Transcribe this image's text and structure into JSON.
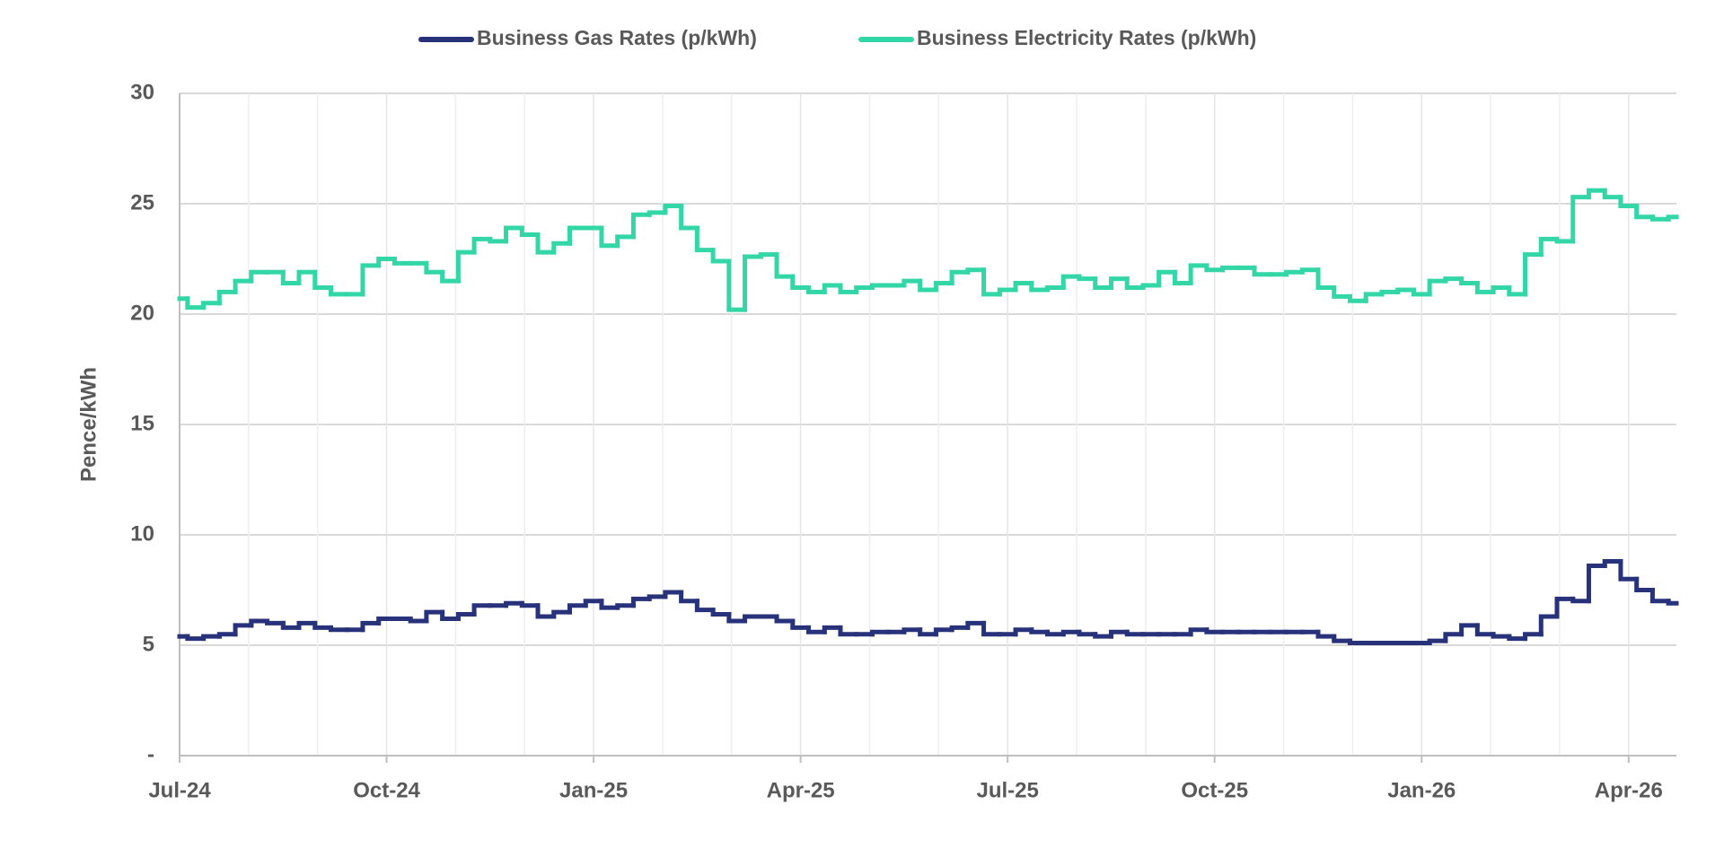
{
  "chart_data": {
    "type": "line",
    "step": true,
    "y_label": "Pence/kWh",
    "grid": true,
    "legend": "top",
    "categories": [
      "Jul-24",
      null,
      null,
      null,
      null,
      null,
      null,
      null,
      null,
      null,
      null,
      null,
      null,
      "Oct-24",
      null,
      null,
      null,
      null,
      null,
      null,
      null,
      null,
      null,
      null,
      null,
      null,
      "Jan-25",
      null,
      null,
      null,
      null,
      null,
      null,
      null,
      null,
      null,
      null,
      null,
      null,
      "Apr-25",
      null,
      null,
      null,
      null,
      null,
      null,
      null,
      null,
      null,
      null,
      null,
      null,
      "Jul-25",
      null,
      null,
      null,
      null,
      null,
      null,
      null,
      null,
      null,
      null,
      null,
      null,
      "Oct-25",
      null,
      null,
      null,
      null,
      null,
      null,
      null,
      null,
      null,
      null,
      null,
      null,
      "Jan-26",
      null,
      null,
      null,
      null,
      null,
      null,
      null,
      null,
      null,
      null,
      null,
      null,
      "Apr-26",
      null,
      null,
      null
    ],
    "ylim": [
      0,
      30
    ],
    "yticks": [
      {
        "value": 0,
        "label": "-"
      },
      5,
      10,
      15,
      20,
      25,
      30
    ],
    "series": [
      {
        "name": "Business Gas Rates (p/kWh)",
        "color": "#27327a",
        "values": [
          5.4,
          5.3,
          5.4,
          5.5,
          5.9,
          6.1,
          6.0,
          5.8,
          6.0,
          5.8,
          5.7,
          5.7,
          6.0,
          6.2,
          6.2,
          6.1,
          6.5,
          6.2,
          6.4,
          6.8,
          6.8,
          6.9,
          6.8,
          6.3,
          6.5,
          6.8,
          7.0,
          6.7,
          6.8,
          7.1,
          7.2,
          7.4,
          7.0,
          6.6,
          6.4,
          6.1,
          6.3,
          6.3,
          6.1,
          5.8,
          5.6,
          5.8,
          5.5,
          5.5,
          5.6,
          5.6,
          5.7,
          5.5,
          5.7,
          5.8,
          6.0,
          5.5,
          5.5,
          5.7,
          5.6,
          5.5,
          5.6,
          5.5,
          5.4,
          5.6,
          5.5,
          5.5,
          5.5,
          5.5,
          5.7,
          5.6,
          5.6,
          5.6,
          5.6,
          5.6,
          5.6,
          5.6,
          5.4,
          5.2,
          5.1,
          5.1,
          5.1,
          5.1,
          5.1,
          5.2,
          5.5,
          5.9,
          5.5,
          5.4,
          5.3,
          5.5,
          6.3,
          7.1,
          7.0,
          8.6,
          8.8,
          8.0,
          7.5,
          7.0,
          6.9
        ]
      },
      {
        "name": "Business Electricity Rates (p/kWh)",
        "color": "#33d6a6",
        "values": [
          20.7,
          20.3,
          20.5,
          21.0,
          21.5,
          21.9,
          21.9,
          21.4,
          21.9,
          21.2,
          20.9,
          20.9,
          22.2,
          22.5,
          22.3,
          22.3,
          21.9,
          21.5,
          22.8,
          23.4,
          23.3,
          23.9,
          23.6,
          22.8,
          23.2,
          23.9,
          23.9,
          23.1,
          23.5,
          24.5,
          24.6,
          24.9,
          23.9,
          22.9,
          22.4,
          20.2,
          22.6,
          22.7,
          21.7,
          21.2,
          21.0,
          21.3,
          21.0,
          21.2,
          21.3,
          21.3,
          21.5,
          21.1,
          21.4,
          21.9,
          22.0,
          20.9,
          21.1,
          21.4,
          21.1,
          21.2,
          21.7,
          21.6,
          21.2,
          21.6,
          21.2,
          21.3,
          21.9,
          21.4,
          22.2,
          22.0,
          22.1,
          22.1,
          21.8,
          21.8,
          21.9,
          22.0,
          21.2,
          20.8,
          20.6,
          20.9,
          21.0,
          21.1,
          20.9,
          21.5,
          21.6,
          21.4,
          21.0,
          21.2,
          20.9,
          22.7,
          23.4,
          23.3,
          25.3,
          25.6,
          25.3,
          24.9,
          24.4,
          24.3,
          24.4
        ]
      }
    ]
  }
}
